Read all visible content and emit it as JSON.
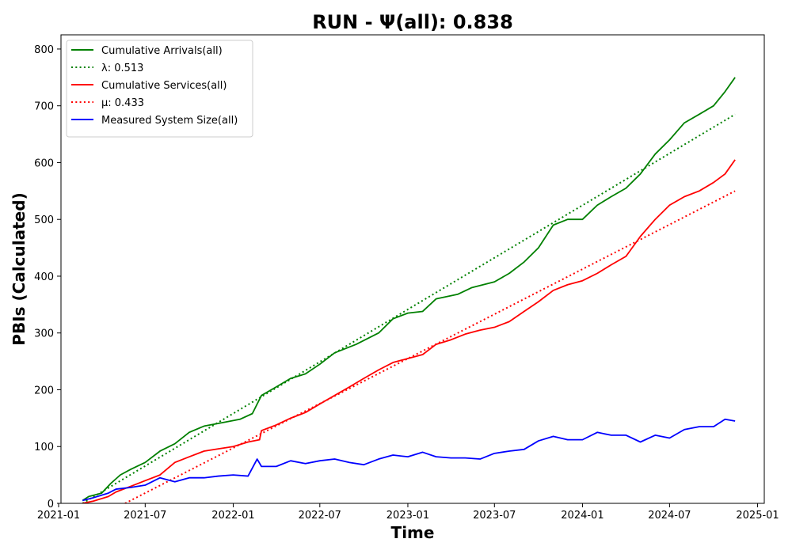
{
  "chart_data": {
    "type": "line",
    "title": "RUN -  Ψ(all): 0.838",
    "xlabel": "Time",
    "ylabel": "PBIs (Calculated)",
    "xlim": [
      "2021-01-06",
      "2025-01-15"
    ],
    "ylim": [
      0,
      825
    ],
    "x_ticks": [
      "2021-01",
      "2021-07",
      "2022-01",
      "2022-07",
      "2023-01",
      "2023-07",
      "2024-01",
      "2024-07",
      "2025-01"
    ],
    "y_ticks": [
      0,
      100,
      200,
      300,
      400,
      500,
      600,
      700,
      800
    ],
    "grid": false,
    "legend_position": "top-left",
    "series": [
      {
        "name": "Cumulative Arrivals(all)",
        "color": "#008000",
        "style": "solid",
        "points": [
          [
            "2021-02-20",
            5
          ],
          [
            "2021-03-05",
            12
          ],
          [
            "2021-04-01",
            18
          ],
          [
            "2021-04-20",
            35
          ],
          [
            "2021-05-10",
            50
          ],
          [
            "2021-06-01",
            60
          ],
          [
            "2021-07-01",
            72
          ],
          [
            "2021-08-01",
            92
          ],
          [
            "2021-09-01",
            105
          ],
          [
            "2021-10-01",
            125
          ],
          [
            "2021-11-01",
            136
          ],
          [
            "2021-12-15",
            143
          ],
          [
            "2022-01-15",
            148
          ],
          [
            "2022-02-10",
            158
          ],
          [
            "2022-03-01",
            190
          ],
          [
            "2022-04-01",
            205
          ],
          [
            "2022-05-01",
            220
          ],
          [
            "2022-06-01",
            228
          ],
          [
            "2022-07-01",
            245
          ],
          [
            "2022-08-01",
            265
          ],
          [
            "2022-09-15",
            280
          ],
          [
            "2022-11-01",
            300
          ],
          [
            "2022-12-01",
            325
          ],
          [
            "2023-01-01",
            335
          ],
          [
            "2023-02-01",
            338
          ],
          [
            "2023-03-01",
            360
          ],
          [
            "2023-04-15",
            368
          ],
          [
            "2023-05-15",
            380
          ],
          [
            "2023-07-01",
            390
          ],
          [
            "2023-08-01",
            405
          ],
          [
            "2023-09-01",
            425
          ],
          [
            "2023-10-01",
            450
          ],
          [
            "2023-11-01",
            490
          ],
          [
            "2023-12-01",
            500
          ],
          [
            "2024-01-01",
            500
          ],
          [
            "2024-02-01",
            525
          ],
          [
            "2024-03-01",
            540
          ],
          [
            "2024-04-01",
            555
          ],
          [
            "2024-05-01",
            580
          ],
          [
            "2024-06-01",
            615
          ],
          [
            "2024-07-01",
            640
          ],
          [
            "2024-08-01",
            670
          ],
          [
            "2024-09-01",
            685
          ],
          [
            "2024-10-01",
            700
          ],
          [
            "2024-10-25",
            725
          ],
          [
            "2024-11-15",
            750
          ]
        ]
      },
      {
        "name": "λ: 0.513",
        "color": "#008000",
        "style": "dotted",
        "points": [
          [
            "2021-02-20",
            0
          ],
          [
            "2024-11-15",
            685
          ]
        ]
      },
      {
        "name": "Cumulative Services(all)",
        "color": "#ff0000",
        "style": "solid",
        "points": [
          [
            "2021-02-20",
            0
          ],
          [
            "2021-03-15",
            4
          ],
          [
            "2021-04-15",
            12
          ],
          [
            "2021-05-01",
            20
          ],
          [
            "2021-06-01",
            30
          ],
          [
            "2021-07-01",
            40
          ],
          [
            "2021-08-01",
            50
          ],
          [
            "2021-09-01",
            72
          ],
          [
            "2021-10-01",
            82
          ],
          [
            "2021-11-01",
            92
          ],
          [
            "2021-12-01",
            96
          ],
          [
            "2022-01-01",
            100
          ],
          [
            "2022-02-01",
            108
          ],
          [
            "2022-02-25",
            112
          ],
          [
            "2022-03-01",
            128
          ],
          [
            "2022-04-01",
            138
          ],
          [
            "2022-05-01",
            150
          ],
          [
            "2022-06-01",
            160
          ],
          [
            "2022-07-01",
            175
          ],
          [
            "2022-08-01",
            190
          ],
          [
            "2022-09-01",
            205
          ],
          [
            "2022-10-01",
            220
          ],
          [
            "2022-11-01",
            235
          ],
          [
            "2022-12-01",
            248
          ],
          [
            "2023-01-01",
            255
          ],
          [
            "2023-02-01",
            262
          ],
          [
            "2023-03-01",
            280
          ],
          [
            "2023-04-01",
            288
          ],
          [
            "2023-05-01",
            298
          ],
          [
            "2023-06-01",
            305
          ],
          [
            "2023-07-01",
            310
          ],
          [
            "2023-08-01",
            320
          ],
          [
            "2023-09-01",
            338
          ],
          [
            "2023-10-01",
            355
          ],
          [
            "2023-11-01",
            375
          ],
          [
            "2023-12-01",
            385
          ],
          [
            "2024-01-01",
            392
          ],
          [
            "2024-02-01",
            405
          ],
          [
            "2024-03-01",
            420
          ],
          [
            "2024-04-01",
            435
          ],
          [
            "2024-05-01",
            470
          ],
          [
            "2024-06-01",
            500
          ],
          [
            "2024-07-01",
            525
          ],
          [
            "2024-08-01",
            540
          ],
          [
            "2024-09-01",
            550
          ],
          [
            "2024-10-01",
            565
          ],
          [
            "2024-10-25",
            580
          ],
          [
            "2024-11-15",
            605
          ]
        ]
      },
      {
        "name": "μ: 0.433",
        "color": "#ff0000",
        "style": "dotted",
        "points": [
          [
            "2021-05-20",
            0
          ],
          [
            "2024-11-15",
            550
          ]
        ]
      },
      {
        "name": "Measured System Size(all)",
        "color": "#0000ff",
        "style": "solid",
        "points": [
          [
            "2021-02-20",
            5
          ],
          [
            "2021-03-15",
            10
          ],
          [
            "2021-04-15",
            18
          ],
          [
            "2021-05-01",
            25
          ],
          [
            "2021-06-01",
            28
          ],
          [
            "2021-07-01",
            32
          ],
          [
            "2021-08-01",
            45
          ],
          [
            "2021-09-01",
            38
          ],
          [
            "2021-10-01",
            45
          ],
          [
            "2021-11-01",
            45
          ],
          [
            "2021-12-01",
            48
          ],
          [
            "2022-01-01",
            50
          ],
          [
            "2022-02-01",
            48
          ],
          [
            "2022-02-20",
            78
          ],
          [
            "2022-03-01",
            65
          ],
          [
            "2022-04-01",
            65
          ],
          [
            "2022-05-01",
            75
          ],
          [
            "2022-06-01",
            70
          ],
          [
            "2022-07-01",
            75
          ],
          [
            "2022-08-01",
            78
          ],
          [
            "2022-09-01",
            72
          ],
          [
            "2022-10-01",
            68
          ],
          [
            "2022-11-01",
            78
          ],
          [
            "2022-12-01",
            85
          ],
          [
            "2023-01-01",
            82
          ],
          [
            "2023-02-01",
            90
          ],
          [
            "2023-03-01",
            82
          ],
          [
            "2023-04-01",
            80
          ],
          [
            "2023-05-01",
            80
          ],
          [
            "2023-06-01",
            78
          ],
          [
            "2023-07-01",
            88
          ],
          [
            "2023-08-01",
            92
          ],
          [
            "2023-09-01",
            95
          ],
          [
            "2023-10-01",
            110
          ],
          [
            "2023-11-01",
            118
          ],
          [
            "2023-12-01",
            112
          ],
          [
            "2024-01-01",
            112
          ],
          [
            "2024-02-01",
            125
          ],
          [
            "2024-03-01",
            120
          ],
          [
            "2024-04-01",
            120
          ],
          [
            "2024-05-01",
            108
          ],
          [
            "2024-06-01",
            120
          ],
          [
            "2024-07-01",
            115
          ],
          [
            "2024-08-01",
            130
          ],
          [
            "2024-09-01",
            135
          ],
          [
            "2024-10-01",
            135
          ],
          [
            "2024-10-25",
            148
          ],
          [
            "2024-11-15",
            145
          ]
        ]
      }
    ]
  }
}
